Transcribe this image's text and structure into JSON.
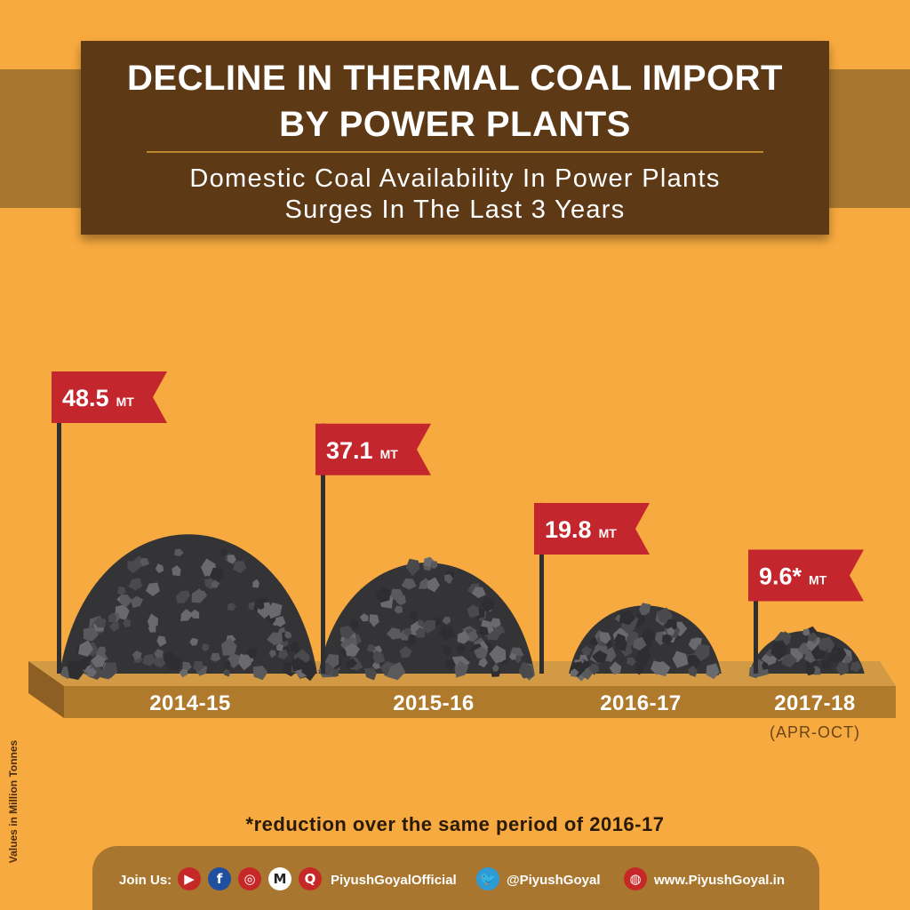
{
  "header": {
    "title_line1": "DECLINE IN THERMAL COAL IMPORT",
    "title_line2": "BY POWER PLANTS",
    "subtitle_line1": "Domestic Coal Availability In Power Plants",
    "subtitle_line2": "Surges In The Last 3 Years"
  },
  "chart_data": {
    "type": "bar",
    "categories": [
      "2014-15",
      "2015-16",
      "2016-17",
      "2017-18"
    ],
    "values": [
      48.5,
      37.1,
      19.8,
      9.6
    ],
    "value_labels": [
      "48.5",
      "37.1",
      "19.8",
      "9.6*"
    ],
    "unit": "MT",
    "category_notes": [
      "",
      "",
      "",
      "(APR-OCT)"
    ],
    "ylabel": "Values in Million Tonnes",
    "footnote": "*reduction over the same period of 2016-17"
  },
  "colors": {
    "background": "#F7AA3F",
    "title_box": "#5E3916",
    "flag": "#C4262E",
    "coal": "#3D3D3F",
    "platform": "#B07A2C"
  },
  "footer": {
    "join_label": "Join Us:",
    "social_icons": [
      "youtube-icon",
      "facebook-icon",
      "instagram-icon",
      "medium-icon",
      "quora-icon"
    ],
    "social_glyphs": [
      "▶",
      "f",
      "◎",
      "M",
      "Q"
    ],
    "handle_official": "PiyushGoyalOfficial",
    "twitter_handle": "@PiyushGoyal",
    "website": "www.PiyushGoyal.in"
  }
}
